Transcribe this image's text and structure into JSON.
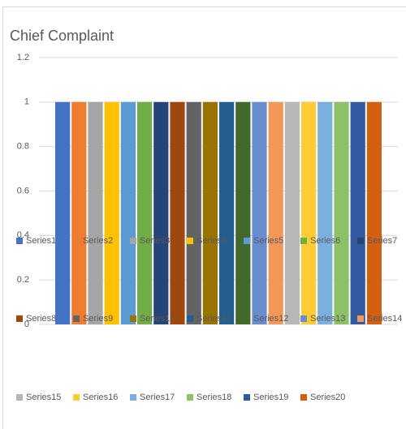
{
  "chart_data": {
    "type": "bar",
    "title": "Chief Complaint",
    "categories": [
      null
    ],
    "series": [
      {
        "name": "Series1",
        "color": "#4472C4",
        "values": [
          1
        ]
      },
      {
        "name": "Series2",
        "color": "#ED7D31",
        "values": [
          1
        ]
      },
      {
        "name": "Series3",
        "color": "#A5A5A5",
        "values": [
          1
        ]
      },
      {
        "name": "Series4",
        "color": "#FFC000",
        "values": [
          1
        ]
      },
      {
        "name": "Series5",
        "color": "#5B9BD5",
        "values": [
          1
        ]
      },
      {
        "name": "Series6",
        "color": "#70AD47",
        "values": [
          1
        ]
      },
      {
        "name": "Series7",
        "color": "#264478",
        "values": [
          1
        ]
      },
      {
        "name": "Series8",
        "color": "#9E480E",
        "values": [
          1
        ]
      },
      {
        "name": "Series9",
        "color": "#636363",
        "values": [
          1
        ]
      },
      {
        "name": "Series10",
        "color": "#997300",
        "values": [
          1
        ]
      },
      {
        "name": "Series11",
        "color": "#255E91",
        "values": [
          1
        ]
      },
      {
        "name": "Series12",
        "color": "#43682B",
        "values": [
          1
        ]
      },
      {
        "name": "Series13",
        "color": "#698ED0",
        "values": [
          1
        ]
      },
      {
        "name": "Series14",
        "color": "#F1975A",
        "values": [
          1
        ]
      },
      {
        "name": "Series15",
        "color": "#B7B7B7",
        "values": [
          1
        ]
      },
      {
        "name": "Series16",
        "color": "#FFCD33",
        "values": [
          1
        ]
      },
      {
        "name": "Series17",
        "color": "#7CAFDD",
        "values": [
          1
        ]
      },
      {
        "name": "Series18",
        "color": "#8CC168",
        "values": [
          1
        ]
      },
      {
        "name": "Series19",
        "color": "#335AA1",
        "values": [
          1
        ]
      },
      {
        "name": "Series20",
        "color": "#D26012",
        "values": [
          1
        ]
      }
    ],
    "ylim": [
      0,
      1.2
    ],
    "yticks": [
      0,
      0.2,
      0.4,
      0.6,
      0.8,
      1,
      1.2
    ],
    "grid": true
  }
}
